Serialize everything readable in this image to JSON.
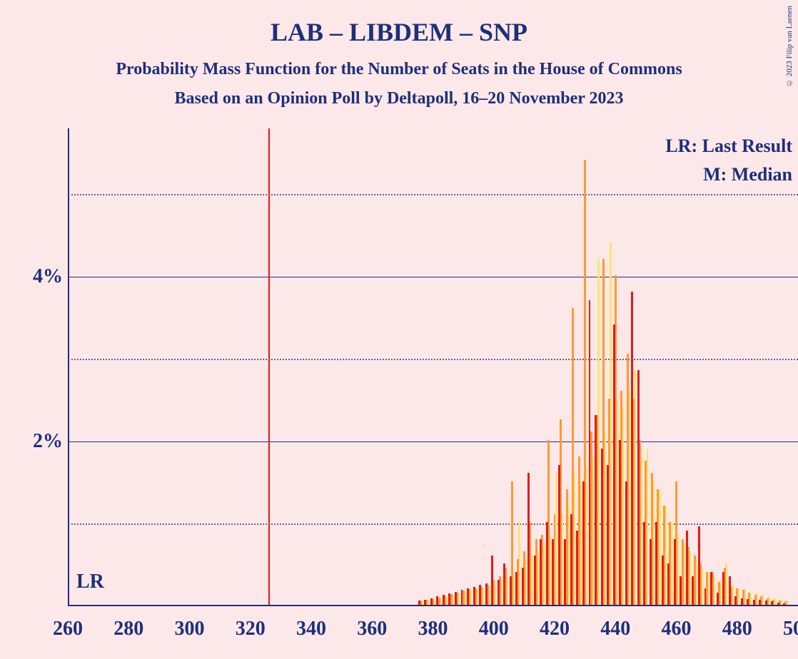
{
  "copyright": "© 2023 Filip van Laenen",
  "title": "LAB – LIBDEM – SNP",
  "subtitle1": "Probability Mass Function for the Number of Seats in the House of Commons",
  "subtitle2": "Based on an Opinion Poll by Deltapoll, 16–20 November 2023",
  "legend": {
    "lr": "LR: Last Result",
    "m": "M: Median"
  },
  "lr_label": "LR",
  "chart": {
    "type": "bar-pmf",
    "background_color": "#fce8e8",
    "axis_color": "#1e2f7a",
    "text_color": "#1e2f7a",
    "xlim": [
      260,
      500
    ],
    "xtick_step": 20,
    "xticks": [
      260,
      280,
      300,
      320,
      340,
      360,
      380,
      400,
      420,
      440,
      460,
      480,
      500
    ],
    "ylim": [
      0,
      5.8
    ],
    "ytick_major": [
      2,
      4
    ],
    "ytick_minor": [
      1,
      3,
      5
    ],
    "ytick_labels": [
      "2%",
      "4%"
    ],
    "lr_seat": 326,
    "bar_colors": [
      "#e41a1c",
      "#ff9933",
      "#f8e473"
    ],
    "bar_width": 1.0,
    "title_fontsize": 36,
    "subtitle_fontsize": 24,
    "axis_label_fontsize": 28,
    "legend_fontsize": 26,
    "title_fontweight": "bold",
    "data": [
      {
        "seat": 376,
        "vals": [
          0.05,
          0.05,
          0.05
        ]
      },
      {
        "seat": 378,
        "vals": [
          0.06,
          0.06,
          0.06
        ]
      },
      {
        "seat": 380,
        "vals": [
          0.08,
          0.07,
          0.07
        ]
      },
      {
        "seat": 382,
        "vals": [
          0.1,
          0.09,
          0.08
        ]
      },
      {
        "seat": 384,
        "vals": [
          0.12,
          0.11,
          0.1
        ]
      },
      {
        "seat": 386,
        "vals": [
          0.14,
          0.13,
          0.12
        ]
      },
      {
        "seat": 388,
        "vals": [
          0.16,
          0.15,
          0.14
        ]
      },
      {
        "seat": 390,
        "vals": [
          0.18,
          0.17,
          0.16
        ]
      },
      {
        "seat": 392,
        "vals": [
          0.2,
          0.19,
          0.18
        ]
      },
      {
        "seat": 394,
        "vals": [
          0.22,
          0.2,
          0.19
        ]
      },
      {
        "seat": 396,
        "vals": [
          0.24,
          0.22,
          0.21
        ]
      },
      {
        "seat": 398,
        "vals": [
          0.26,
          0.24,
          0.23
        ]
      },
      {
        "seat": 400,
        "vals": [
          0.6,
          0.3,
          0.26
        ]
      },
      {
        "seat": 402,
        "vals": [
          0.3,
          0.35,
          0.3
        ]
      },
      {
        "seat": 404,
        "vals": [
          0.5,
          0.45,
          0.35
        ]
      },
      {
        "seat": 406,
        "vals": [
          0.35,
          1.5,
          0.4
        ]
      },
      {
        "seat": 408,
        "vals": [
          0.4,
          0.55,
          1.0
        ]
      },
      {
        "seat": 410,
        "vals": [
          0.45,
          0.65,
          0.55
        ]
      },
      {
        "seat": 412,
        "vals": [
          1.6,
          1.0,
          0.6
        ]
      },
      {
        "seat": 414,
        "vals": [
          0.6,
          0.8,
          0.65
        ]
      },
      {
        "seat": 416,
        "vals": [
          0.8,
          0.85,
          0.75
        ]
      },
      {
        "seat": 418,
        "vals": [
          1.0,
          2.0,
          0.85
        ]
      },
      {
        "seat": 420,
        "vals": [
          0.8,
          1.1,
          1.6
        ]
      },
      {
        "seat": 422,
        "vals": [
          1.7,
          2.25,
          1.1
        ]
      },
      {
        "seat": 424,
        "vals": [
          0.8,
          1.4,
          1.2
        ]
      },
      {
        "seat": 426,
        "vals": [
          1.1,
          3.6,
          1.6
        ]
      },
      {
        "seat": 428,
        "vals": [
          0.9,
          1.8,
          1.5
        ]
      },
      {
        "seat": 430,
        "vals": [
          1.5,
          5.4,
          1.65
        ]
      },
      {
        "seat": 432,
        "vals": [
          3.7,
          2.1,
          1.8
        ]
      },
      {
        "seat": 434,
        "vals": [
          2.3,
          2.3,
          4.2
        ]
      },
      {
        "seat": 436,
        "vals": [
          1.9,
          4.2,
          2.1
        ]
      },
      {
        "seat": 438,
        "vals": [
          1.7,
          2.5,
          4.4
        ]
      },
      {
        "seat": 440,
        "vals": [
          3.4,
          4.0,
          2.5
        ]
      },
      {
        "seat": 442,
        "vals": [
          2.0,
          2.6,
          2.4
        ]
      },
      {
        "seat": 444,
        "vals": [
          1.5,
          3.05,
          2.6
        ]
      },
      {
        "seat": 446,
        "vals": [
          3.8,
          2.5,
          2.85
        ]
      },
      {
        "seat": 448,
        "vals": [
          2.85,
          2.0,
          1.8
        ]
      },
      {
        "seat": 450,
        "vals": [
          1.0,
          1.75,
          1.9
        ]
      },
      {
        "seat": 452,
        "vals": [
          0.8,
          1.6,
          1.5
        ]
      },
      {
        "seat": 454,
        "vals": [
          1.0,
          1.4,
          1.4
        ]
      },
      {
        "seat": 456,
        "vals": [
          0.6,
          1.2,
          1.2
        ]
      },
      {
        "seat": 458,
        "vals": [
          0.5,
          1.0,
          1.0
        ]
      },
      {
        "seat": 460,
        "vals": [
          0.8,
          1.5,
          0.85
        ]
      },
      {
        "seat": 462,
        "vals": [
          0.35,
          0.8,
          0.75
        ]
      },
      {
        "seat": 464,
        "vals": [
          0.9,
          0.7,
          0.65
        ]
      },
      {
        "seat": 466,
        "vals": [
          0.35,
          0.6,
          0.55
        ]
      },
      {
        "seat": 468,
        "vals": [
          0.95,
          0.5,
          0.45
        ]
      },
      {
        "seat": 470,
        "vals": [
          0.2,
          0.4,
          0.4
        ]
      },
      {
        "seat": 472,
        "vals": [
          0.4,
          0.4,
          0.35
        ]
      },
      {
        "seat": 474,
        "vals": [
          0.15,
          0.28,
          0.3
        ]
      },
      {
        "seat": 476,
        "vals": [
          0.4,
          0.45,
          0.5
        ]
      },
      {
        "seat": 478,
        "vals": [
          0.35,
          0.22,
          0.25
        ]
      },
      {
        "seat": 480,
        "vals": [
          0.1,
          0.2,
          0.2
        ]
      },
      {
        "seat": 482,
        "vals": [
          0.08,
          0.18,
          0.2
        ]
      },
      {
        "seat": 484,
        "vals": [
          0.07,
          0.15,
          0.15
        ]
      },
      {
        "seat": 486,
        "vals": [
          0.06,
          0.12,
          0.14
        ]
      },
      {
        "seat": 488,
        "vals": [
          0.06,
          0.1,
          0.12
        ]
      },
      {
        "seat": 490,
        "vals": [
          0.05,
          0.08,
          0.1
        ]
      },
      {
        "seat": 492,
        "vals": [
          0.04,
          0.06,
          0.08
        ]
      },
      {
        "seat": 494,
        "vals": [
          0.03,
          0.05,
          0.06
        ]
      },
      {
        "seat": 496,
        "vals": [
          0.02,
          0.04,
          0.05
        ]
      }
    ]
  }
}
